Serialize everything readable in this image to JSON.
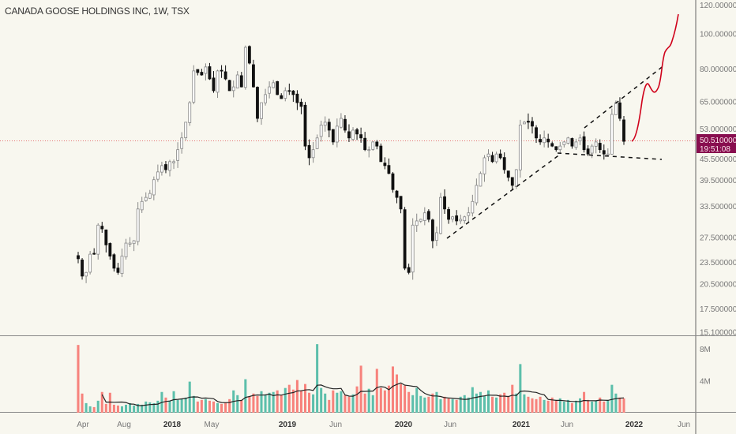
{
  "header": {
    "title": "CANADA GOOSE HOLDINGS INC, 1W, TSX"
  },
  "price_label": {
    "price": "50.510000",
    "countdown": "19:51:08",
    "color": "#880e4f"
  },
  "colors": {
    "background": "#f8f7ef",
    "up_candle": "#ffffff",
    "down_candle": "#111111",
    "volume_up": "#5cbfab",
    "volume_down": "#f7827c",
    "projection": "#d0021b",
    "price_line": "#e57373"
  },
  "chart_data": {
    "type": "candlestick",
    "interval": "1W",
    "scale": "log",
    "ylim": [
      15.1,
      120
    ],
    "price_ticks": [
      "120.000000",
      "100.000000",
      "80.000000",
      "65.000000",
      "53.000000",
      "45.500000",
      "39.500000",
      "33.500000",
      "27.500000",
      "23.500000",
      "20.500000",
      "17.500000",
      "15.100000"
    ],
    "volume_ticks": [
      "8M",
      "4M"
    ],
    "time_ticks": [
      {
        "label": "Apr",
        "year": false
      },
      {
        "label": "Aug",
        "year": false
      },
      {
        "label": "2018",
        "year": true
      },
      {
        "label": "May",
        "year": false
      },
      {
        "label": "2019",
        "year": true
      },
      {
        "label": "Jun",
        "year": false
      },
      {
        "label": "2020",
        "year": true
      },
      {
        "label": "Jun",
        "year": false
      },
      {
        "label": "2021",
        "year": true
      },
      {
        "label": "Jun",
        "year": false
      },
      {
        "label": "2022",
        "year": true
      },
      {
        "label": "Jun",
        "year": false
      }
    ],
    "closes": [
      24.0,
      21.5,
      22.0,
      24.7,
      24.7,
      29.7,
      29.0,
      26.2,
      24.4,
      22.6,
      22.0,
      24.4,
      26.5,
      26.5,
      26.9,
      32.9,
      34.5,
      35.4,
      36.3,
      39.6,
      41.6,
      43.3,
      42.2,
      44.4,
      44.4,
      47.9,
      51.6,
      57.0,
      64.5,
      78.9,
      78.1,
      76.9,
      80.9,
      75.0,
      69.6,
      78.9,
      78.9,
      75.0,
      69.6,
      71.3,
      76.9,
      71.3,
      91.6,
      82.9,
      71.3,
      58.4,
      64.5,
      67.9,
      71.3,
      73.2,
      67.9,
      66.2,
      69.6,
      69.6,
      67.9,
      64.5,
      63.0,
      49.0,
      45.5,
      47.9,
      51.6,
      56.0,
      57.0,
      54.2,
      50.3,
      55.6,
      58.4,
      54.2,
      51.6,
      54.2,
      52.9,
      51.6,
      47.9,
      47.9,
      50.3,
      49.0,
      44.4,
      43.3,
      41.2,
      37.2,
      35.4,
      32.9,
      22.6,
      22.0,
      29.7,
      30.5,
      30.8,
      32.1,
      30.8,
      26.9,
      28.3,
      35.4,
      32.9,
      30.8,
      31.3,
      30.5,
      30.8,
      31.3,
      32.1,
      34.5,
      38.2,
      41.2,
      45.5,
      46.6,
      44.4,
      46.6,
      45.5,
      42.2,
      40.2,
      38.2,
      42.2,
      56.0,
      57.0,
      57.0,
      55.6,
      51.6,
      50.3,
      51.6,
      50.3,
      49.0,
      47.9,
      49.0,
      50.3,
      51.6,
      49.0,
      50.3,
      51.6,
      47.9,
      46.6,
      49.0,
      50.3,
      47.9,
      46.6,
      46.6,
      59.9,
      64.5,
      58.4,
      50.5
    ],
    "volumes_m": [
      8.5,
      2.4,
      1.2,
      0.8,
      0.7,
      1.5,
      2.6,
      1.1,
      2.5,
      1.0,
      0.9,
      0.8,
      1.0,
      1.2,
      0.9,
      1.1,
      1.0,
      1.4,
      1.3,
      1.2,
      1.5,
      2.6,
      1.9,
      1.5,
      2.7,
      1.6,
      1.7,
      1.9,
      3.9,
      2.1,
      1.4,
      1.6,
      1.7,
      1.5,
      1.4,
      1.2,
      1.1,
      1.3,
      1.7,
      2.8,
      2.2,
      1.6,
      4.2,
      2.0,
      2.4,
      2.1,
      2.7,
      2.3,
      2.5,
      2.6,
      2.8,
      2.2,
      3.1,
      3.5,
      2.9,
      4.1,
      2.8,
      3.6,
      2.5,
      2.3,
      8.6,
      3.1,
      2.4,
      1.6,
      2.8,
      2.5,
      2.7,
      2.2,
      2.0,
      2.3,
      3.3,
      5.9,
      2.4,
      3.0,
      2.2,
      5.5,
      3.1,
      2.8,
      3.4,
      5.8,
      4.8,
      3.6,
      3.4,
      2.6,
      2.2,
      3.1,
      2.1,
      1.9,
      2.0,
      2.4,
      2.6,
      1.7,
      2.0,
      1.8,
      1.7,
      1.6,
      2.0,
      2.2,
      1.9,
      3.2,
      2.4,
      2.6,
      2.1,
      2.8,
      2.0,
      1.9,
      2.3,
      2.5,
      2.1,
      3.5,
      2.4,
      6.1,
      2.3,
      2.0,
      1.8,
      1.7,
      2.0,
      1.6,
      1.5,
      1.9,
      1.5,
      1.8,
      1.4,
      1.6,
      1.2,
      1.5,
      1.8,
      2.6,
      1.6,
      1.4,
      1.5,
      1.9,
      1.4,
      1.6,
      3.5,
      2.4,
      1.9,
      1.8
    ]
  }
}
